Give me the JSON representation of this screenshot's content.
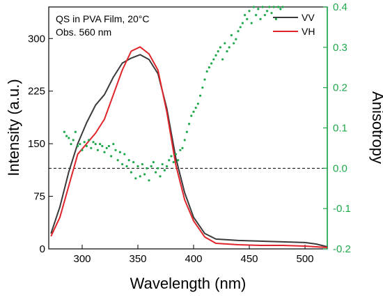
{
  "chart_data": {
    "type": "line",
    "annotation_lines": [
      "QS in PVA Film, 20°C",
      "Obs. 560 nm"
    ],
    "xlabel": "Wavelength (nm)",
    "ylabel_left": "Intensity (a.u.)",
    "ylabel_right": "Anisotropy",
    "xlim": [
      270,
      520
    ],
    "ylim_left": [
      0,
      345
    ],
    "ylim_right": [
      -0.2,
      0.4
    ],
    "x_ticks": [
      300,
      350,
      400,
      450,
      500
    ],
    "x_tick_labels": [
      "300",
      "350",
      "400",
      "450",
      "500"
    ],
    "y_left_ticks": [
      0,
      75,
      150,
      225,
      300
    ],
    "y_left_tick_labels": [
      "0",
      "75",
      "150",
      "225",
      "300"
    ],
    "y_right_ticks": [
      -0.2,
      -0.1,
      0.0,
      0.1,
      0.2,
      0.3,
      0.4
    ],
    "y_right_tick_labels": [
      "-0.2",
      "-0.1",
      "0.0",
      "0.1",
      "0.2",
      "0.3",
      "0.4"
    ],
    "legend_position": "top-right",
    "zero_reference": {
      "axis": "right",
      "value": 0.0,
      "style": "dashed"
    },
    "colors": {
      "VV": "#3a3a3a",
      "VH": "#e0242a",
      "anisotropy": "#1fa84b",
      "right_axis": "#1fa84b"
    },
    "series": [
      {
        "name": "VV",
        "axis": "left",
        "x": [
          272,
          280,
          288,
          296,
          304,
          312,
          320,
          328,
          336,
          344,
          352,
          360,
          368,
          376,
          384,
          392,
          400,
          410,
          420,
          440,
          460,
          480,
          500,
          510,
          520
        ],
        "values": [
          22,
          60,
          110,
          150,
          180,
          205,
          220,
          245,
          265,
          272,
          277,
          270,
          250,
          200,
          130,
          80,
          45,
          22,
          14,
          12,
          11,
          10,
          9,
          7,
          3
        ]
      },
      {
        "name": "VH",
        "axis": "left",
        "x": [
          272,
          280,
          288,
          296,
          304,
          312,
          320,
          328,
          336,
          344,
          352,
          360,
          368,
          376,
          384,
          392,
          400,
          410,
          420,
          440,
          460,
          480,
          500,
          510,
          520
        ],
        "values": [
          18,
          45,
          90,
          135,
          150,
          165,
          185,
          220,
          255,
          282,
          288,
          278,
          255,
          195,
          120,
          70,
          40,
          17,
          8,
          6,
          5,
          5,
          4,
          3,
          2
        ]
      },
      {
        "name": "Anisotropy",
        "axis": "right",
        "style": "dots",
        "x": [
          284,
          286,
          288,
          290,
          292,
          294,
          296,
          298,
          300,
          302,
          304,
          306,
          308,
          310,
          312,
          314,
          316,
          318,
          320,
          322,
          324,
          326,
          328,
          330,
          332,
          334,
          336,
          338,
          340,
          342,
          344,
          346,
          348,
          350,
          352,
          354,
          356,
          358,
          360,
          362,
          364,
          366,
          368,
          370,
          372,
          374,
          376,
          378,
          380,
          382,
          384,
          386,
          388,
          390,
          392,
          394,
          396,
          398,
          400,
          402,
          404,
          406,
          408,
          410,
          412,
          414,
          416,
          418,
          420,
          422,
          424,
          426,
          428,
          430,
          432,
          434,
          436,
          438,
          440,
          442,
          444,
          446,
          448,
          450,
          452,
          454,
          456,
          458,
          460,
          462,
          464,
          466,
          468,
          470,
          472,
          474,
          476,
          478,
          480
        ],
        "values": [
          0.09,
          0.08,
          0.075,
          0.06,
          0.07,
          0.09,
          0.055,
          0.06,
          0.045,
          0.065,
          0.055,
          0.07,
          0.05,
          0.065,
          0.06,
          0.045,
          0.06,
          0.055,
          0.04,
          0.05,
          0.055,
          0.03,
          0.06,
          0.045,
          0.02,
          0.04,
          0.01,
          0.035,
          0.005,
          0.02,
          -0.01,
          0.015,
          -0.025,
          0.005,
          -0.02,
          0.01,
          -0.015,
          0.0,
          -0.03,
          0.005,
          0.015,
          -0.01,
          0.0,
          -0.02,
          0.01,
          -0.005,
          0.005,
          0.02,
          0.03,
          0.015,
          0.035,
          0.02,
          0.045,
          0.05,
          0.07,
          0.09,
          0.11,
          0.13,
          0.14,
          0.15,
          0.16,
          0.18,
          0.2,
          0.22,
          0.24,
          0.25,
          0.26,
          0.27,
          0.28,
          0.29,
          0.3,
          0.27,
          0.31,
          0.29,
          0.3,
          0.33,
          0.31,
          0.32,
          0.34,
          0.35,
          0.36,
          0.38,
          0.37,
          0.39,
          0.36,
          0.4,
          0.38,
          0.395,
          0.37,
          0.4,
          0.38,
          0.39,
          0.4,
          0.385,
          0.4,
          0.37,
          0.4,
          0.395,
          0.4
        ]
      }
    ]
  }
}
